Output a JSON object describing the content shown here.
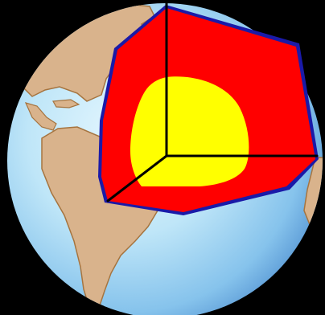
{
  "diagram": {
    "subject": "earth-interior-cutaway",
    "layers": [
      {
        "id": "crust",
        "label": "",
        "color": "#1a1aa8"
      },
      {
        "id": "mantle",
        "label": "",
        "color": "#ff0000"
      },
      {
        "id": "core",
        "label": "",
        "color": "#ffff00"
      }
    ],
    "colors": {
      "background": "#000000",
      "ocean": "#b8e4f6",
      "ocean_shade": "#5f9ed8",
      "land": "#d9b38c",
      "land_edge": "#a6743f",
      "axes": "#000000"
    }
  }
}
